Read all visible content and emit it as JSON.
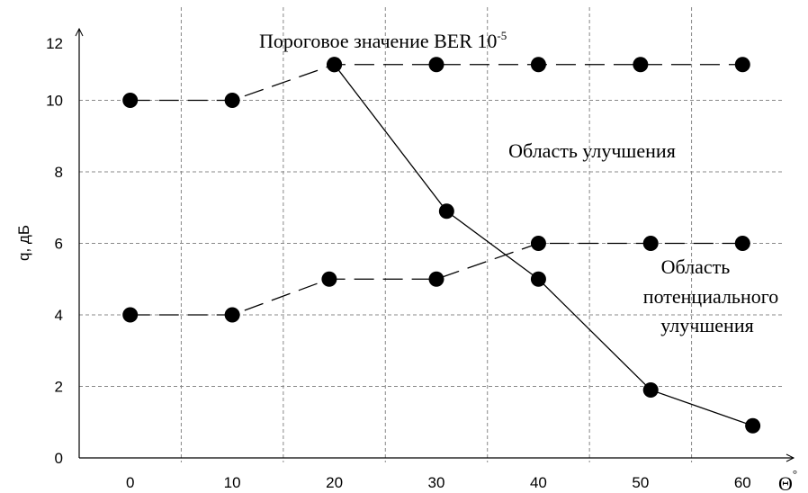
{
  "chart_data": {
    "type": "line",
    "xlabel": "Θ",
    "xlabel_sup": "°",
    "ylabel": "q, дБ",
    "xlim": [
      -5,
      65
    ],
    "ylim": [
      0,
      12
    ],
    "xticks": [
      0,
      10,
      20,
      30,
      40,
      50,
      60
    ],
    "xgrid": [
      5,
      15,
      25,
      35,
      45,
      55
    ],
    "yticks": [
      0,
      2,
      4,
      6,
      8,
      10,
      12
    ],
    "grid": true,
    "series": [
      {
        "color": "#000000",
        "dashed": true,
        "x": [
          0,
          10,
          20,
          30,
          40,
          50,
          60
        ],
        "values": [
          10,
          10,
          11,
          11,
          11,
          11,
          11
        ]
      },
      {
        "color": "#000000",
        "dashed": false,
        "x": [
          20,
          31,
          40,
          51,
          61
        ],
        "values": [
          11,
          6.9,
          5,
          1.9,
          0.9
        ]
      },
      {
        "color": "#000000",
        "dashed": true,
        "x": [
          0,
          10,
          19.5,
          30,
          40,
          51,
          60
        ],
        "values": [
          4,
          4,
          5,
          5,
          6,
          6,
          6
        ]
      }
    ],
    "annotations": [
      {
        "text": "Пороговое значение BER 10",
        "sup": "-5"
      },
      {
        "lines": [
          "Область улучшения"
        ]
      },
      {
        "lines": [
          "Область",
          "потенциального",
          "улучшения"
        ]
      }
    ]
  }
}
